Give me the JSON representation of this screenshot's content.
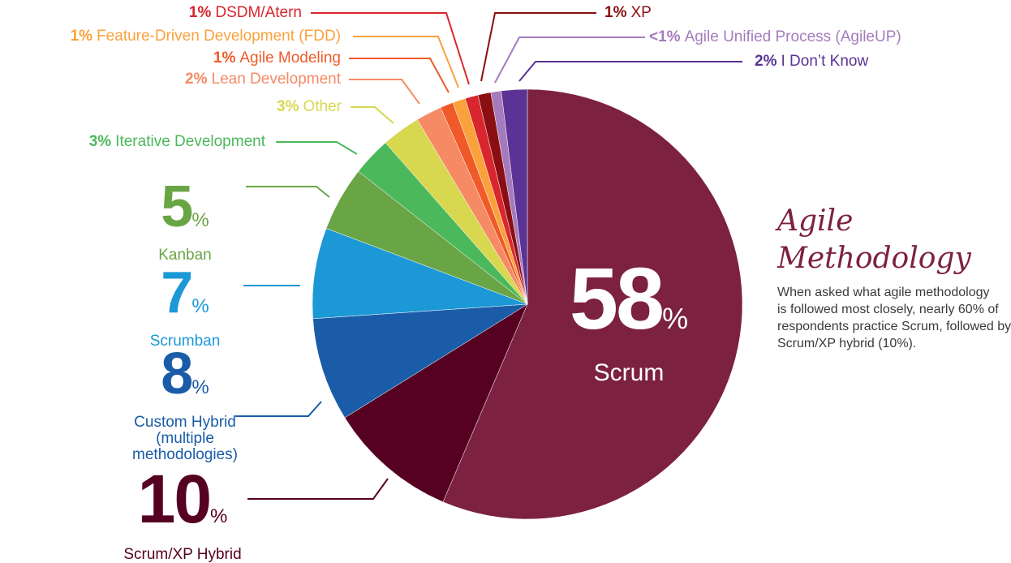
{
  "chart_data": {
    "type": "pie",
    "title": "Agile Methodology",
    "description": [
      "When asked what agile methodology",
      "is followed most closely, nearly 60% of",
      "respondents practice Scrum, followed by",
      "Scrum/XP hybrid (10%)."
    ],
    "categories": [
      "Scrum",
      "Scrum/XP Hybrid",
      "Custom Hybrid (multiple methodologies)",
      "Scrumban",
      "Kanban",
      "Iterative Development",
      "Other",
      "Lean Development",
      "Agile Modeling",
      "Feature-Driven Development (FDD)",
      "DSDM/Atern",
      "XP",
      "Agile Unified Process (AgileUP)",
      "I Don’t Know"
    ],
    "values": [
      58,
      10,
      8,
      7,
      5,
      3,
      3,
      2,
      1,
      1,
      1,
      1,
      0.8,
      2
    ],
    "value_labels": [
      "58%",
      "10%",
      "8%",
      "7%",
      "5%",
      "3%",
      "3%",
      "2%",
      "1%",
      "1%",
      "1%",
      "1%",
      "<1%",
      "2%"
    ],
    "colors": [
      "#7d2141",
      "#560022",
      "#1a5ca8",
      "#1c98d6",
      "#6aa545",
      "#4cb85c",
      "#d7d84f",
      "#f58a65",
      "#f05a28",
      "#f9a23b",
      "#d9262e",
      "#8b0f12",
      "#a57bbd",
      "#5b3394"
    ]
  }
}
